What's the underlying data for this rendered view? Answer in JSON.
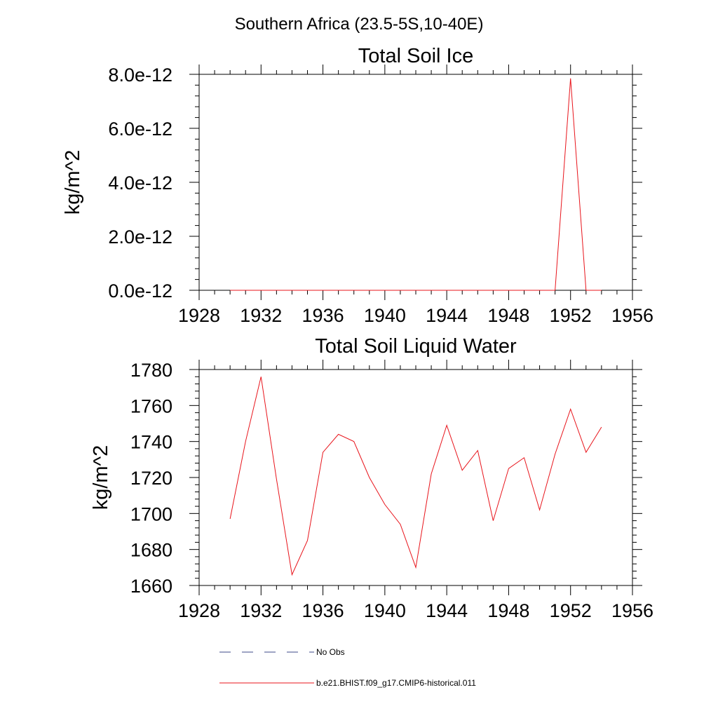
{
  "figure": {
    "title": "Southern Africa (23.5-5S,10-40E)"
  },
  "colors": {
    "series": "#e8141b",
    "obs": "#3c4a8a",
    "axis": "#000000"
  },
  "chart_data": [
    {
      "type": "line",
      "title": "Total Soil Ice",
      "ylabel": "kg/m^2",
      "xlabel": "",
      "xlim": [
        1928,
        1956
      ],
      "ylim": [
        0,
        8e-12
      ],
      "x_ticks": [
        1928,
        1932,
        1936,
        1940,
        1944,
        1948,
        1952,
        1956
      ],
      "x_tick_labels": [
        "1928",
        "1932",
        "1936",
        "1940",
        "1944",
        "1948",
        "1952",
        "1956"
      ],
      "y_ticks": [
        0,
        2e-12,
        4e-12,
        6e-12,
        8e-12
      ],
      "y_tick_labels": [
        "0.0e-12",
        "2.0e-12",
        "4.0e-12",
        "6.0e-12",
        "8.0e-12"
      ],
      "grid": false,
      "series": [
        {
          "name": "b.e21.BHIST.f09_g17.CMIP6-historical.011",
          "x": [
            1930,
            1931,
            1932,
            1933,
            1934,
            1935,
            1936,
            1937,
            1938,
            1939,
            1940,
            1941,
            1942,
            1943,
            1944,
            1945,
            1946,
            1947,
            1948,
            1949,
            1950,
            1951,
            1952,
            1953,
            1954
          ],
          "y": [
            0,
            0,
            0,
            0,
            0,
            0,
            0,
            0,
            0,
            0,
            0,
            0,
            0,
            0,
            0,
            0,
            0,
            0,
            0,
            0,
            0,
            0,
            7.85e-12,
            0,
            0
          ]
        }
      ]
    },
    {
      "type": "line",
      "title": "Total Soil Liquid Water",
      "ylabel": "kg/m^2",
      "xlabel": "",
      "xlim": [
        1928,
        1956
      ],
      "ylim": [
        1660,
        1780
      ],
      "x_ticks": [
        1928,
        1932,
        1936,
        1940,
        1944,
        1948,
        1952,
        1956
      ],
      "x_tick_labels": [
        "1928",
        "1932",
        "1936",
        "1940",
        "1944",
        "1948",
        "1952",
        "1956"
      ],
      "y_ticks": [
        1660,
        1680,
        1700,
        1720,
        1740,
        1760,
        1780
      ],
      "y_tick_labels": [
        "1660",
        "1680",
        "1700",
        "1720",
        "1740",
        "1760",
        "1780"
      ],
      "grid": false,
      "series": [
        {
          "name": "b.e21.BHIST.f09_g17.CMIP6-historical.011",
          "x": [
            1930,
            1931,
            1932,
            1933,
            1934,
            1935,
            1936,
            1937,
            1938,
            1939,
            1940,
            1941,
            1942,
            1943,
            1944,
            1945,
            1946,
            1947,
            1948,
            1949,
            1950,
            1951,
            1952,
            1953,
            1954
          ],
          "y": [
            1697,
            1740,
            1776,
            1719,
            1666,
            1685,
            1734,
            1744,
            1740,
            1720,
            1705,
            1694,
            1670,
            1722,
            1749,
            1724,
            1735,
            1696,
            1725,
            1731,
            1702,
            1733,
            1758,
            1734,
            1748
          ]
        }
      ]
    }
  ],
  "legend": {
    "placement": "bottom",
    "items": [
      {
        "label": "No Obs",
        "style": "dashed"
      },
      {
        "label": "b.e21.BHIST.f09_g17.CMIP6-historical.011",
        "style": "solid"
      }
    ]
  }
}
